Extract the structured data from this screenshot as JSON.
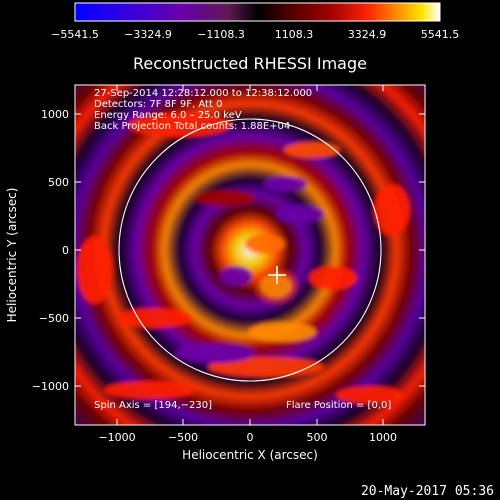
{
  "colorbar": {
    "ticks": [
      "−5541.5",
      "−3324.9",
      "−1108.3",
      "1108.3",
      "3324.9",
      "5541.5"
    ],
    "colors": [
      "#0000ff",
      "#3a00d8",
      "#6b00a8",
      "#6a1c45",
      "#000000",
      "#5a0000",
      "#a00000",
      "#ff0000",
      "#ff8a00",
      "#ffff00",
      "#ffffff"
    ]
  },
  "plot": {
    "title": "Reconstructed RHESSI Image",
    "xlabel": "Heliocentric X (arcsec)",
    "ylabel": "Heliocentric Y (arcsec)",
    "xticks": [
      "−1000",
      "−500",
      "0",
      "500",
      "1000"
    ],
    "yticks": [
      "1000",
      "500",
      "0",
      "−500",
      "−1000"
    ],
    "annotation_lines": [
      "27-Sep-2014 12:28:12.000 to 12:38:12.000",
      "Detectors: 7F 8F 9F, Att 0",
      "Energy Range: 6.0 – 25.0 keV",
      "Back Projection    Total counts: 1.88E+04"
    ],
    "spin_axis": "Spin Axis = [194,−230]",
    "flare_position": "Flare Position = [0,0]"
  },
  "footer": {
    "timestamp": "20-May-2017 05:36"
  }
}
